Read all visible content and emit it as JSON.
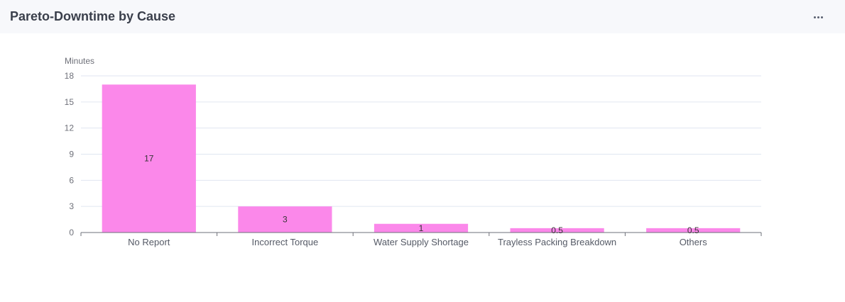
{
  "header": {
    "title": "Pareto-Downtime by Cause",
    "menu_icon": "more-horizontal-icon"
  },
  "chart_data": {
    "type": "bar",
    "categories": [
      "No Report",
      "Incorrect Torque",
      "Water Supply Shortage",
      "Trayless Packing Breakdown",
      "Others"
    ],
    "values": [
      17,
      3,
      1,
      0.5,
      0.5
    ],
    "value_labels": [
      "17",
      "3",
      "1",
      "0.5",
      "0.5"
    ],
    "ylabel": "Minutes",
    "ylim": [
      0,
      18
    ],
    "yticks": [
      "0",
      "3",
      "6",
      "9",
      "12",
      "15",
      "18"
    ],
    "grid": true,
    "bar_color": "#fb88ea",
    "grid_color": "#e0e6f1",
    "axis_color": "#6e7079"
  }
}
